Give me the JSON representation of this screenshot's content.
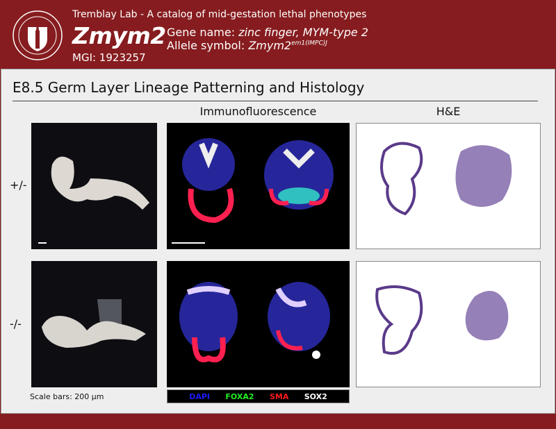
{
  "header": {
    "lab_title": "Tremblay Lab - A catalog of mid-gestation lethal phenotypes",
    "gene_symbol": "Zmym2",
    "gene_name_label": "Gene name: ",
    "gene_name": "zinc finger, MYM-type 2",
    "allele_label": "Allele symbol: ",
    "allele_base": "Zmym2",
    "allele_sup": "em1(IMPC)J",
    "mgi": "MGI: 1923257",
    "logo": "University of Massachusetts seal"
  },
  "section": {
    "title": "E8.5 Germ Layer Lineage Patterning and Histology",
    "columns": [
      "Immunofluorescence",
      "H&E"
    ],
    "rows": [
      "+/-",
      "-/-"
    ],
    "scale_note": "Scale bars: 200 µm",
    "legend": [
      {
        "label": "DAPI",
        "color": "#1a1aff"
      },
      {
        "label": "FOXA2",
        "color": "#22ee22"
      },
      {
        "label": "SMA",
        "color": "#ff1a1a"
      },
      {
        "label": "SOX2",
        "color": "#ffffff"
      }
    ]
  },
  "colors": {
    "brand": "#861c1f",
    "panel": "#eeeeee"
  }
}
